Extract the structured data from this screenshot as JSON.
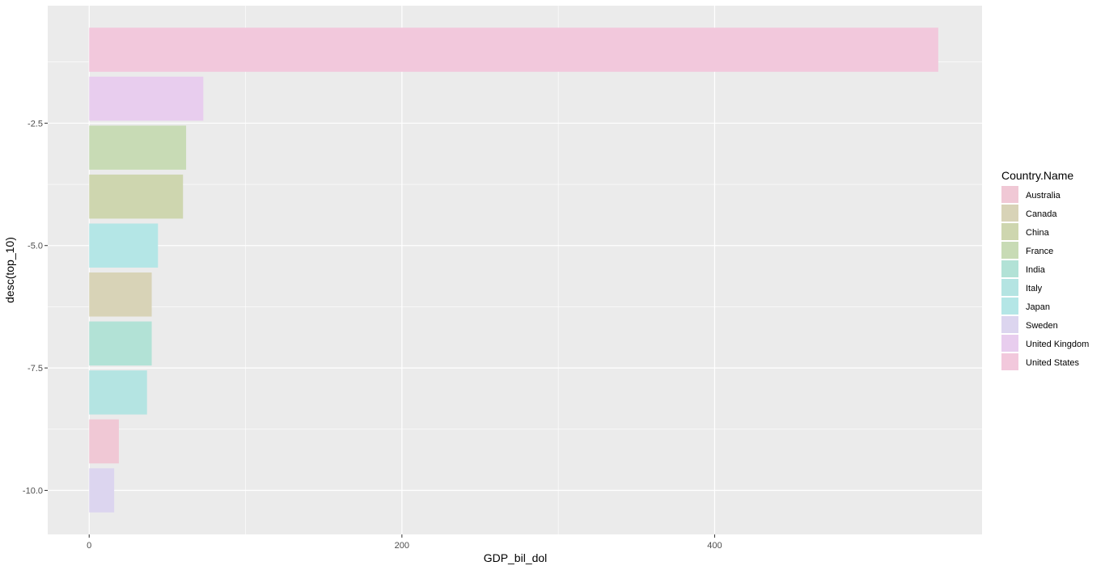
{
  "chart_data": {
    "type": "bar",
    "orientation": "horizontal",
    "xlabel": "GDP_bil_dol",
    "ylabel": "desc(top_10)",
    "xlim": [
      -26.5,
      571
    ],
    "ylim": [
      -10.9,
      -0.1
    ],
    "x_ticks": [
      0,
      200,
      400
    ],
    "y_ticks": [
      -2.5,
      -5.0,
      -7.5,
      -10.0
    ],
    "y_tick_labels": [
      "-2.5",
      "-5.0",
      "-7.5",
      "-10.0"
    ],
    "grid": true,
    "legend_position": "right",
    "bars": [
      {
        "y": -1,
        "value": 543,
        "country": "United States"
      },
      {
        "y": -2,
        "value": 73,
        "country": "United Kingdom"
      },
      {
        "y": -3,
        "value": 62,
        "country": "France"
      },
      {
        "y": -4,
        "value": 60,
        "country": "China"
      },
      {
        "y": -5,
        "value": 44,
        "country": "Japan"
      },
      {
        "y": -6,
        "value": 40,
        "country": "Canada"
      },
      {
        "y": -7,
        "value": 40,
        "country": "India"
      },
      {
        "y": -8,
        "value": 37,
        "country": "Italy"
      },
      {
        "y": -9,
        "value": 19,
        "country": "Australia"
      },
      {
        "y": -10,
        "value": 16,
        "country": "Sweden"
      }
    ],
    "legend": {
      "title": "Country.Name",
      "entries": [
        {
          "name": "Australia",
          "color": "#f0c8d5"
        },
        {
          "name": "Canada",
          "color": "#d8d3b7"
        },
        {
          "name": "China",
          "color": "#ced6af"
        },
        {
          "name": "France",
          "color": "#c8dbb5"
        },
        {
          "name": "India",
          "color": "#b2e2d6"
        },
        {
          "name": "Italy",
          "color": "#b4e4e2"
        },
        {
          "name": "Japan",
          "color": "#b4e6e6"
        },
        {
          "name": "Sweden",
          "color": "#dcd5ef"
        },
        {
          "name": "United Kingdom",
          "color": "#e8cdee"
        },
        {
          "name": "United States",
          "color": "#f2c8dc"
        }
      ]
    },
    "colors": {
      "panel_background": "#ebebeb",
      "grid_major": "#ffffff"
    }
  }
}
